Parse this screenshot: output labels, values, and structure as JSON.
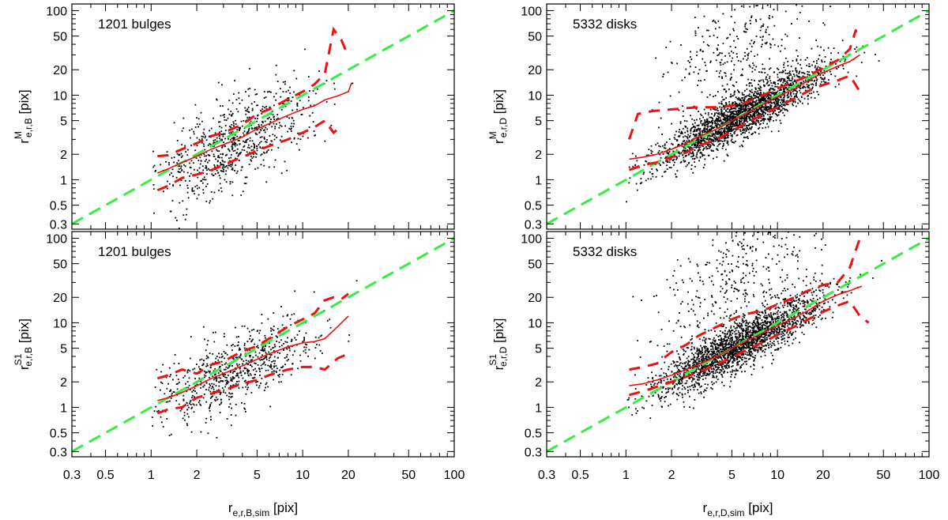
{
  "chart_data": [
    {
      "type": "scatter",
      "panel": "top-left",
      "annotation": "1201 bulges",
      "ylabel": {
        "base": "r",
        "sub": "e,r,B",
        "sup": "M",
        "unit": " [pix]"
      },
      "xlabel": null,
      "xscale": "log",
      "yscale": "log",
      "xlim": [
        0.3,
        100
      ],
      "ylim": [
        0.26,
        120
      ],
      "x_ticks": [
        0.3,
        0.5,
        1,
        2,
        5,
        10,
        20,
        50,
        100
      ],
      "y_ticks": [
        0.3,
        0.5,
        1,
        2,
        5,
        10,
        20,
        50,
        100
      ],
      "show_x_tick_labels": false,
      "n_points_drawn": 750,
      "scatter_model": {
        "x_range": [
          1.0,
          24.0
        ],
        "logx_mu": 0.55,
        "logx_sigma": 0.26,
        "slope": 0.85,
        "offset": -0.02,
        "scatter_dex": 0.25,
        "seed": 11
      },
      "series": [
        {
          "name": "one-to-one",
          "style": "green-dashed",
          "x": [
            0.3,
            100
          ],
          "y": [
            0.3,
            100
          ]
        },
        {
          "name": "median",
          "style": "red-solid",
          "x": [
            1.1,
            1.3,
            1.6,
            2.0,
            2.5,
            3.0,
            4.0,
            5.0,
            6.0,
            8.0,
            10.0,
            12.0,
            14.0,
            17.0,
            20.0,
            21.0
          ],
          "y": [
            1.2,
            1.35,
            1.6,
            1.9,
            2.3,
            2.6,
            3.2,
            4.0,
            4.6,
            5.8,
            6.8,
            7.5,
            8.8,
            9.8,
            11.0,
            14.0
          ]
        },
        {
          "name": "upper-percentile",
          "style": "red-dashed",
          "x": [
            1.1,
            1.3,
            1.6,
            2.0,
            2.5,
            3.0,
            4.0,
            5.0,
            6.0,
            8.0,
            10.0,
            12.0,
            14.0,
            16.0,
            18.0,
            19.5
          ],
          "y": [
            1.9,
            1.95,
            2.3,
            2.7,
            3.3,
            3.6,
            4.5,
            6.0,
            6.8,
            9.0,
            11.0,
            13.5,
            18.0,
            60.0,
            45.0,
            32.0
          ]
        },
        {
          "name": "lower-percentile",
          "style": "red-dashed",
          "x": [
            1.1,
            1.3,
            1.6,
            2.0,
            2.5,
            3.0,
            4.0,
            5.0,
            6.0,
            8.0,
            10.0,
            12.0,
            14.0,
            16.0,
            18.0
          ],
          "y": [
            0.75,
            0.85,
            1.05,
            1.15,
            1.3,
            1.5,
            1.85,
            2.2,
            2.5,
            3.0,
            3.6,
            4.2,
            5.0,
            3.6,
            4.3
          ]
        }
      ]
    },
    {
      "type": "scatter",
      "panel": "top-right",
      "annotation": "5332 disks",
      "ylabel": {
        "base": "r",
        "sub": "e,r,D",
        "sup": "M",
        "unit": " [pix]"
      },
      "xlabel": null,
      "xscale": "log",
      "yscale": "log",
      "xlim": [
        0.3,
        100
      ],
      "ylim": [
        0.26,
        120
      ],
      "x_ticks": [
        0.3,
        0.5,
        1,
        2,
        5,
        10,
        20,
        50,
        100
      ],
      "y_ticks": [
        0.3,
        0.5,
        1,
        2,
        5,
        10,
        20,
        50,
        100
      ],
      "show_x_tick_labels": false,
      "n_points_drawn": 2600,
      "scatter_model": {
        "x_range": [
          1.0,
          90.0
        ],
        "logx_mu": 0.75,
        "logx_sigma": 0.27,
        "slope": 0.95,
        "offset": 0.03,
        "scatter_dex": 0.13,
        "outlier_fraction": 0.12,
        "seed": 23
      },
      "series": [
        {
          "name": "one-to-one",
          "style": "green-dashed",
          "x": [
            0.3,
            100
          ],
          "y": [
            0.3,
            100
          ]
        },
        {
          "name": "median",
          "style": "red-solid",
          "x": [
            1.05,
            1.3,
            1.6,
            2.0,
            2.5,
            3.0,
            4.0,
            5.0,
            6.0,
            8.0,
            10.0,
            13.0,
            16.0,
            20.0,
            25.0,
            30.0,
            35.0
          ],
          "y": [
            1.75,
            1.85,
            2.0,
            2.3,
            2.7,
            3.2,
            4.0,
            5.0,
            5.9,
            7.8,
            9.6,
            12.0,
            15.0,
            18.5,
            22.0,
            25.0,
            30.0
          ]
        },
        {
          "name": "upper-percentile",
          "style": "red-dashed",
          "x": [
            1.05,
            1.2,
            1.5,
            2.0,
            3.0,
            4.0,
            5.0,
            6.0,
            8.0,
            10.0,
            13.0,
            16.0,
            20.0,
            25.0,
            30.0,
            33.0
          ],
          "y": [
            3.0,
            6.0,
            6.5,
            6.8,
            7.2,
            7.2,
            7.5,
            8.0,
            10.0,
            12.0,
            14.5,
            17.0,
            21.0,
            26.0,
            35.0,
            60.0
          ]
        },
        {
          "name": "lower-percentile",
          "style": "red-dashed",
          "x": [
            1.05,
            1.3,
            1.6,
            2.0,
            2.5,
            3.0,
            4.0,
            5.0,
            6.0,
            8.0,
            10.0,
            13.0,
            16.0,
            20.0,
            25.0,
            30.0,
            35.0
          ],
          "y": [
            1.3,
            1.5,
            1.6,
            1.85,
            2.1,
            2.5,
            3.0,
            3.8,
            4.5,
            5.9,
            7.2,
            9.2,
            11.2,
            13.2,
            15.0,
            17.0,
            11.0
          ]
        }
      ]
    },
    {
      "type": "scatter",
      "panel": "bottom-left",
      "annotation": "1201 bulges",
      "ylabel": {
        "base": "r",
        "sub": "e,r,B",
        "sup": "S1",
        "unit": " [pix]"
      },
      "xlabel": {
        "base": "r",
        "sub": "e,r,B,sim",
        "unit": " [pix]"
      },
      "xscale": "log",
      "yscale": "log",
      "xlim": [
        0.3,
        100
      ],
      "ylim": [
        0.26,
        120
      ],
      "x_ticks": [
        0.3,
        0.5,
        1,
        2,
        5,
        10,
        20,
        50,
        100
      ],
      "y_ticks": [
        0.3,
        0.5,
        1,
        2,
        5,
        10,
        20,
        50,
        100
      ],
      "show_x_tick_labels": true,
      "n_points_drawn": 750,
      "scatter_model": {
        "x_range": [
          1.0,
          25.0
        ],
        "logx_mu": 0.55,
        "logx_sigma": 0.26,
        "slope": 0.8,
        "offset": 0.0,
        "scatter_dex": 0.22,
        "seed": 37
      },
      "series": [
        {
          "name": "one-to-one",
          "style": "green-dashed",
          "x": [
            0.3,
            100
          ],
          "y": [
            0.3,
            100
          ]
        },
        {
          "name": "median",
          "style": "red-solid",
          "x": [
            1.1,
            1.3,
            1.6,
            2.0,
            2.5,
            3.0,
            4.0,
            5.0,
            6.0,
            8.0,
            10.0,
            12.0,
            14.0,
            17.0,
            20.0
          ],
          "y": [
            1.2,
            1.3,
            1.5,
            1.8,
            2.2,
            2.5,
            3.1,
            3.7,
            4.3,
            5.2,
            5.8,
            6.0,
            6.5,
            9.0,
            12.0
          ]
        },
        {
          "name": "upper-percentile",
          "style": "red-dashed",
          "x": [
            1.1,
            1.3,
            1.6,
            2.0,
            2.5,
            3.0,
            4.0,
            5.0,
            6.0,
            8.0,
            10.0,
            12.0,
            14.0,
            16.0,
            18.0,
            20.0
          ],
          "y": [
            2.2,
            2.4,
            2.8,
            2.5,
            3.2,
            3.5,
            4.6,
            5.3,
            6.5,
            9.0,
            11.0,
            13.0,
            18.5,
            20.0,
            19.0,
            22.0
          ]
        },
        {
          "name": "lower-percentile",
          "style": "red-dashed",
          "x": [
            1.1,
            1.3,
            1.6,
            2.0,
            2.5,
            3.0,
            4.0,
            5.0,
            6.0,
            8.0,
            10.0,
            12.0,
            14.0,
            17.0,
            20.0
          ],
          "y": [
            0.85,
            0.95,
            1.0,
            1.3,
            1.45,
            1.6,
            1.9,
            2.1,
            2.4,
            2.8,
            3.0,
            3.0,
            2.8,
            3.8,
            4.3
          ]
        }
      ]
    },
    {
      "type": "scatter",
      "panel": "bottom-right",
      "annotation": "5332 disks",
      "ylabel": {
        "base": "r",
        "sub": "e,r,D",
        "sup": "S1",
        "unit": " [pix]"
      },
      "xlabel": {
        "base": "r",
        "sub": "e,r,D,sim",
        "unit": " [pix]"
      },
      "xscale": "log",
      "yscale": "log",
      "xlim": [
        0.3,
        100
      ],
      "ylim": [
        0.26,
        120
      ],
      "x_ticks": [
        0.3,
        0.5,
        1,
        2,
        5,
        10,
        20,
        50,
        100
      ],
      "y_ticks": [
        0.3,
        0.5,
        1,
        2,
        5,
        10,
        20,
        50,
        100
      ],
      "show_x_tick_labels": true,
      "n_points_drawn": 2600,
      "scatter_model": {
        "x_range": [
          1.0,
          90.0
        ],
        "logx_mu": 0.75,
        "logx_sigma": 0.27,
        "slope": 0.95,
        "offset": 0.03,
        "scatter_dex": 0.14,
        "outlier_fraction": 0.14,
        "seed": 53
      },
      "series": [
        {
          "name": "one-to-one",
          "style": "green-dashed",
          "x": [
            0.3,
            100
          ],
          "y": [
            0.3,
            100
          ]
        },
        {
          "name": "median",
          "style": "red-solid",
          "x": [
            1.05,
            1.3,
            1.6,
            2.0,
            2.5,
            3.0,
            4.0,
            5.0,
            6.0,
            8.0,
            10.0,
            13.0,
            16.0,
            20.0,
            25.0,
            30.0,
            36.0
          ],
          "y": [
            1.8,
            1.9,
            2.1,
            2.4,
            2.8,
            3.2,
            4.0,
            5.0,
            5.9,
            7.6,
            9.3,
            11.5,
            14.0,
            18.0,
            21.5,
            24.0,
            27.0
          ]
        },
        {
          "name": "upper-percentile",
          "style": "red-dashed",
          "x": [
            1.05,
            1.3,
            1.6,
            2.0,
            2.5,
            3.0,
            4.0,
            5.0,
            6.0,
            8.0,
            10.0,
            13.0,
            16.0,
            20.0,
            25.0,
            30.0,
            35.0
          ],
          "y": [
            2.8,
            3.0,
            3.3,
            4.5,
            5.5,
            7.0,
            9.0,
            11.0,
            12.5,
            14.0,
            16.5,
            20.0,
            24.0,
            28.0,
            30.0,
            45.0,
            100.0
          ]
        },
        {
          "name": "lower-percentile",
          "style": "red-dashed",
          "x": [
            1.05,
            1.3,
            1.6,
            2.0,
            2.5,
            3.0,
            4.0,
            5.0,
            6.0,
            8.0,
            10.0,
            13.0,
            16.0,
            20.0,
            25.0,
            30.0,
            35.0,
            40.0
          ],
          "y": [
            1.4,
            1.55,
            1.75,
            2.0,
            2.3,
            2.6,
            3.2,
            3.9,
            4.6,
            5.9,
            7.2,
            9.0,
            11.0,
            13.5,
            16.0,
            18.0,
            12.0,
            10.0
          ]
        }
      ]
    }
  ]
}
